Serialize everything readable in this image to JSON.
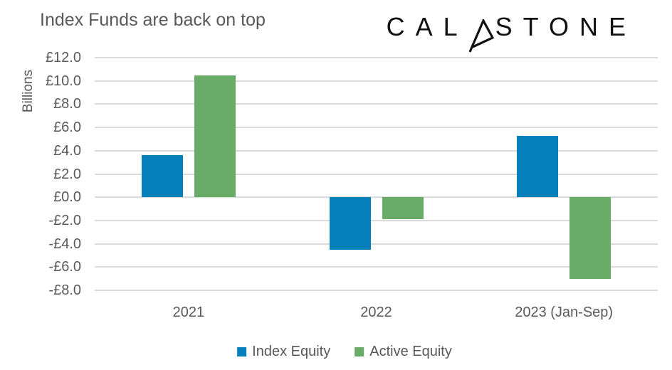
{
  "title": "Index Funds are back on top",
  "logo": {
    "text_before": "CAL",
    "text_after": "STONE"
  },
  "colors": {
    "index_equity": "#0580BA",
    "active_equity": "#68AC68",
    "text": "#595959",
    "gridline": "#DBDBDB",
    "logo": "#111111"
  },
  "chart_data": {
    "type": "bar",
    "title": "Index Funds are back on top",
    "categories": [
      "2021",
      "2022",
      "2023 (Jan-Sep)"
    ],
    "series": [
      {
        "name": "Index Equity",
        "color": "#0580BA",
        "values": [
          3.6,
          -4.5,
          5.3
        ]
      },
      {
        "name": "Active Equity",
        "color": "#68AC68",
        "values": [
          10.5,
          -1.9,
          -7.0
        ]
      }
    ],
    "ylabel": "Billions",
    "yticks": [
      12,
      10,
      8,
      6,
      4,
      2,
      0,
      -2,
      -4,
      -6,
      -8
    ],
    "ytick_labels": [
      "£12.0",
      "£10.0",
      "£8.0",
      "£6.0",
      "£4.0",
      "£2.0",
      "£0.0",
      "-£2.0",
      "-£4.0",
      "-£6.0",
      "-£8.0"
    ],
    "ylim": [
      -8,
      12
    ],
    "grid": true,
    "legend": [
      "Index Equity",
      "Active Equity"
    ],
    "legend_position": "bottom"
  }
}
